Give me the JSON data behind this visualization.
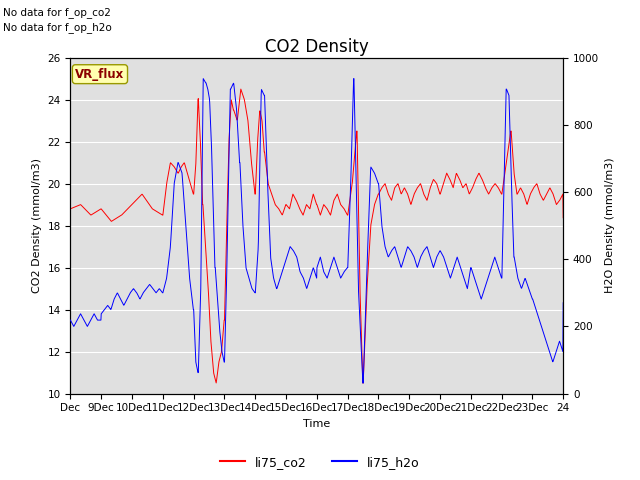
{
  "title": "CO2 Density",
  "xlabel": "Time",
  "ylabel_left": "CO2 Density (mmol/m3)",
  "ylabel_right": "H2O Density (mmol/m3)",
  "text_no_data": [
    "No data for f_op_co2",
    "No data for f_op_h2o"
  ],
  "vr_flux_label": "VR_flux",
  "legend_labels": [
    "li75_co2",
    "li75_h2o"
  ],
  "legend_colors": [
    "red",
    "blue"
  ],
  "ylim_left": [
    10,
    26
  ],
  "ylim_right": [
    0,
    1000
  ],
  "xtick_labels": [
    "Dec",
    "9Dec",
    "10Dec",
    "11Dec",
    "12Dec",
    "13Dec",
    "14Dec",
    "15Dec",
    "16Dec",
    "17Dec",
    "18Dec",
    "19Dec",
    "20Dec",
    "21Dec",
    "22Dec",
    "23Dec",
    "24"
  ],
  "background_color": "#e0e0e0",
  "grid_color": "white",
  "title_fontsize": 12,
  "label_fontsize": 8,
  "tick_fontsize": 7.5
}
